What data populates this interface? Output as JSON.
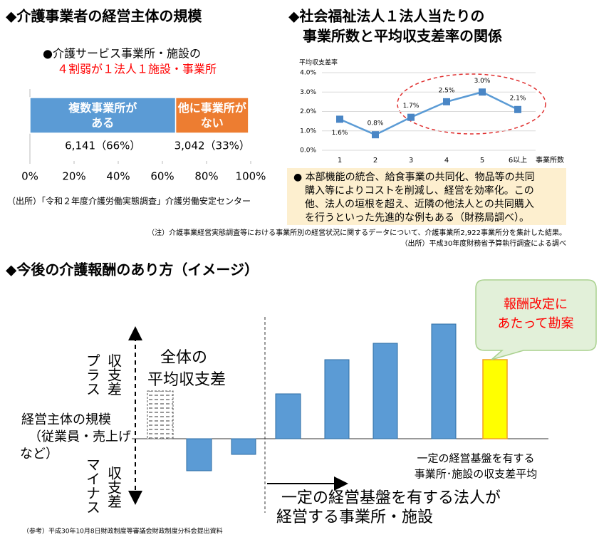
{
  "chart_data": [
    {
      "type": "bar",
      "orientation": "horizontal",
      "stacked": true,
      "title": "◆介護事業者の経営主体の規模",
      "subtitle": [
        "●介護サービス事業所・施設の",
        "４割弱が１法人１施設・事業所"
      ],
      "series": [
        {
          "name": "複数事業所がある",
          "color": "#5b9bd5",
          "values": [
            66
          ],
          "value_labels": [
            "6,141（66%）"
          ]
        },
        {
          "name": "他に事業所がない",
          "color": "#ed7d31",
          "values": [
            33
          ],
          "value_labels": [
            "3,042（33%）"
          ]
        }
      ],
      "xlim": [
        0,
        100
      ],
      "xticks": [
        {
          "value": 0,
          "label": "0%"
        },
        {
          "value": 20,
          "label": "20%"
        },
        {
          "value": 40,
          "label": "40%"
        },
        {
          "value": 60,
          "label": "60%"
        },
        {
          "value": 80,
          "label": "80%"
        },
        {
          "value": 100,
          "label": "100%"
        }
      ],
      "source": "（出所）「令和２年度介護労働実態調査」介護労働安定センター"
    },
    {
      "type": "line",
      "title": [
        "◆社会福祉法人１法人当たりの",
        "事業所数と平均収支差率の関係"
      ],
      "y_label": "平均収支差率",
      "x_label": "事業所数",
      "categories": [
        "1",
        "2",
        "3",
        "4",
        "5",
        "6以上"
      ],
      "values": [
        1.6,
        0.8,
        1.7,
        2.5,
        3.0,
        2.1
      ],
      "value_labels": [
        "1.6%",
        "0.8%",
        "1.7%",
        "2.5%",
        "3.0%",
        "2.1%"
      ],
      "color": "#5b9bd5",
      "grid": true,
      "ylim": [
        0,
        4
      ],
      "yticks": [
        {
          "value": 0,
          "label": "0.0%"
        },
        {
          "value": 1,
          "label": "1.0%"
        },
        {
          "value": 2,
          "label": "2.0%"
        },
        {
          "value": 3,
          "label": "3.0%"
        },
        {
          "value": 4,
          "label": "4.0%"
        }
      ]
    }
  ],
  "bullet_box": [
    "● 本部機能の統合、給食事業の共同化、物品等の共同",
    "購入等によりコストを削減し、経営を効率化。この",
    "他、法人の垣根を超え、近隣の他法人との共同購入",
    "を行うといった先進的な例もある（財務局調べ）。"
  ],
  "notes": [
    "（注）介護事業経営実態調査等における事業所別の経営状況に関するデータについて、介護事業所2,922事業所分を集計した結果。",
    "（出所）平成30年度財務省予算執行調査による調べ"
  ],
  "diagram": {
    "title": "◆今後の介護報酬のあり方（イメージ）",
    "callout": [
      "報酬改定に",
      "あたって勘案"
    ],
    "average": [
      "全体の",
      "平均収支差"
    ],
    "plus": [
      "収支差",
      "プラス"
    ],
    "minus": [
      "収支差",
      "マイナス"
    ],
    "scale": [
      "経営主体の規模",
      "（従業員・売上げ",
      "など）"
    ],
    "stable_average": [
      "一定の経営基盤を有する",
      "事業所･施設の収支差平均"
    ],
    "stable_axis": [
      "一定の経営基盤を有する法人が",
      "経営する事業所・施設"
    ]
  },
  "footer": "（参考）平成30年10月8日財政制度等審議会財政制度分科会提出資料"
}
